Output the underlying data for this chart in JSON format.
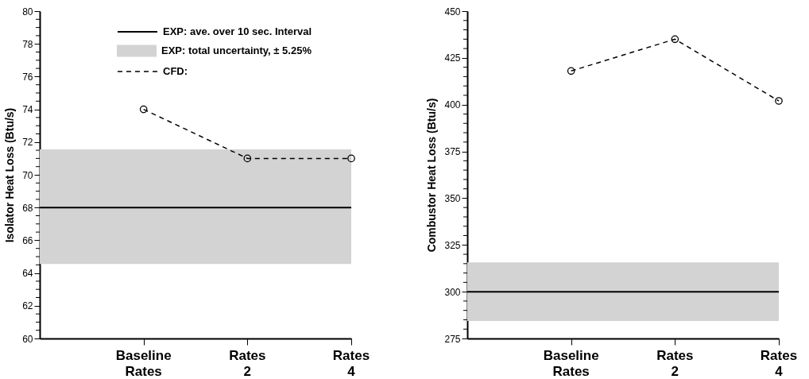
{
  "chart_data": [
    {
      "type": "line",
      "categories": [
        null,
        "Baseline Rates",
        "Rates 2",
        "Rates 4"
      ],
      "series": [
        {
          "name": "CFD:",
          "color": "#000000",
          "values": [
            null,
            74,
            71,
            71
          ]
        }
      ],
      "marker": "circle",
      "line_style": "dashed",
      "ylabel": "Isolator Heat Loss (Btu/s)",
      "ylim": [
        60,
        80
      ],
      "yticks": [
        60,
        {
          "value": 60.5,
          "label": null
        },
        {
          "value": 61,
          "label": null
        },
        {
          "value": 61.5,
          "label": null
        },
        62,
        {
          "value": 62.5,
          "label": null
        },
        {
          "value": 63,
          "label": null
        },
        {
          "value": 63.5,
          "label": null
        },
        64,
        {
          "value": 64.5,
          "label": null
        },
        {
          "value": 65,
          "label": null
        },
        {
          "value": 65.5,
          "label": null
        },
        66,
        {
          "value": 66.5,
          "label": null
        },
        {
          "value": 67,
          "label": null
        },
        {
          "value": 67.5,
          "label": null
        },
        68,
        {
          "value": 68.5,
          "label": null
        },
        {
          "value": 69,
          "label": null
        },
        {
          "value": 69.5,
          "label": null
        },
        70,
        {
          "value": 70.5,
          "label": null
        },
        {
          "value": 71,
          "label": null
        },
        {
          "value": 71.5,
          "label": null
        },
        72,
        {
          "value": 72.5,
          "label": null
        },
        {
          "value": 73,
          "label": null
        },
        {
          "value": 73.5,
          "label": null
        },
        74,
        {
          "value": 74.5,
          "label": null
        },
        {
          "value": 75,
          "label": null
        },
        {
          "value": 75.5,
          "label": null
        },
        76,
        {
          "value": 76.5,
          "label": null
        },
        {
          "value": 77,
          "label": null
        },
        {
          "value": 77.5,
          "label": null
        },
        78,
        {
          "value": 78.5,
          "label": null
        },
        {
          "value": 79,
          "label": null
        },
        {
          "value": 79.5,
          "label": null
        },
        80
      ],
      "ref_lines": [
        {
          "axis": "y",
          "value": 68,
          "label": "EXP: ave. over 10 sec. Interval",
          "color": "#000000"
        }
      ],
      "bands": [
        {
          "axis": "y",
          "from": 64.55,
          "to": 71.55,
          "label": "EXP: total uncertainty, ± 5.25%",
          "color": "#d3d3d3"
        }
      ],
      "legend": "top right",
      "grid": false
    },
    {
      "type": "line",
      "categories": [
        null,
        "Baseline Rates",
        "Rates 2",
        "Rates 4"
      ],
      "series": [
        {
          "color": "#000000",
          "values": [
            null,
            418,
            435,
            402
          ]
        }
      ],
      "marker": "circle",
      "line_style": "dashed",
      "ylabel": "Combustor Heat Loss (Btu/s)",
      "ylim": [
        275,
        450
      ],
      "yticks": [
        275,
        {
          "value": 280,
          "label": null
        },
        {
          "value": 285,
          "label": null
        },
        {
          "value": 290,
          "label": null
        },
        {
          "value": 295,
          "label": null
        },
        300,
        {
          "value": 305,
          "label": null
        },
        {
          "value": 310,
          "label": null
        },
        {
          "value": 315,
          "label": null
        },
        {
          "value": 320,
          "label": null
        },
        325,
        {
          "value": 330,
          "label": null
        },
        {
          "value": 335,
          "label": null
        },
        {
          "value": 340,
          "label": null
        },
        {
          "value": 345,
          "label": null
        },
        350,
        {
          "value": 355,
          "label": null
        },
        {
          "value": 360,
          "label": null
        },
        {
          "value": 365,
          "label": null
        },
        {
          "value": 370,
          "label": null
        },
        375,
        {
          "value": 380,
          "label": null
        },
        {
          "value": 385,
          "label": null
        },
        {
          "value": 390,
          "label": null
        },
        {
          "value": 395,
          "label": null
        },
        400,
        {
          "value": 405,
          "label": null
        },
        {
          "value": 410,
          "label": null
        },
        {
          "value": 415,
          "label": null
        },
        {
          "value": 420,
          "label": null
        },
        425,
        {
          "value": 430,
          "label": null
        },
        {
          "value": 435,
          "label": null
        },
        {
          "value": 440,
          "label": null
        },
        {
          "value": 445,
          "label": null
        },
        450
      ],
      "ref_lines": [
        {
          "axis": "y",
          "value": 300,
          "color": "#000000"
        }
      ],
      "bands": [
        {
          "axis": "y",
          "from": 284.3,
          "to": 315.7,
          "color": "#d3d3d3"
        }
      ],
      "legend": false,
      "grid": false
    }
  ]
}
